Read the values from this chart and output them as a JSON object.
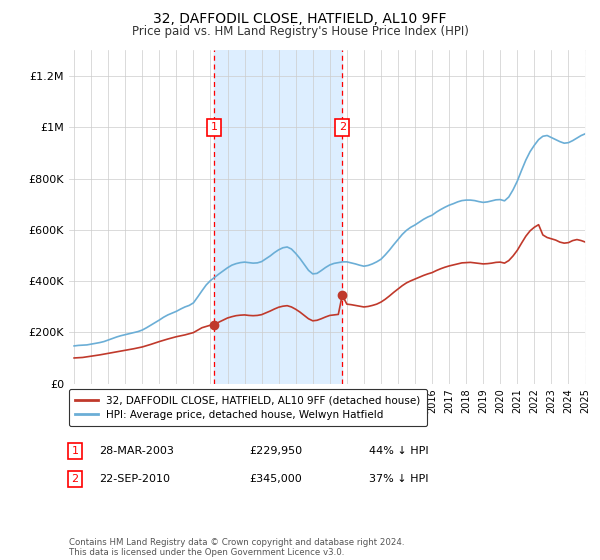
{
  "title": "32, DAFFODIL CLOSE, HATFIELD, AL10 9FF",
  "subtitle": "Price paid vs. HM Land Registry's House Price Index (HPI)",
  "sale1": {
    "date_num": 2003.22,
    "price": 229950,
    "label": "1"
  },
  "sale2": {
    "date_num": 2010.73,
    "price": 345000,
    "label": "2"
  },
  "table": [
    {
      "num": "1",
      "date": "28-MAR-2003",
      "price": "£229,950",
      "pct": "44% ↓ HPI"
    },
    {
      "num": "2",
      "date": "22-SEP-2010",
      "price": "£345,000",
      "pct": "37% ↓ HPI"
    }
  ],
  "legend1": "32, DAFFODIL CLOSE, HATFIELD, AL10 9FF (detached house)",
  "legend2": "HPI: Average price, detached house, Welwyn Hatfield",
  "footer": "Contains HM Land Registry data © Crown copyright and database right 2024.\nThis data is licensed under the Open Government Licence v3.0.",
  "hpi_color": "#6baed6",
  "price_color": "#c0392b",
  "shaded_color": "#ddeeff",
  "ylim_max": 1300000,
  "xlim_start": 1994.7,
  "xlim_end": 2025.5,
  "hpi_data": [
    [
      1995.0,
      147000
    ],
    [
      1995.25,
      149000
    ],
    [
      1995.5,
      150000
    ],
    [
      1995.75,
      151000
    ],
    [
      1996.0,
      154000
    ],
    [
      1996.25,
      157000
    ],
    [
      1996.5,
      160000
    ],
    [
      1996.75,
      164000
    ],
    [
      1997.0,
      170000
    ],
    [
      1997.25,
      176000
    ],
    [
      1997.5,
      182000
    ],
    [
      1997.75,
      187000
    ],
    [
      1998.0,
      191000
    ],
    [
      1998.25,
      195000
    ],
    [
      1998.5,
      199000
    ],
    [
      1998.75,
      203000
    ],
    [
      1999.0,
      209000
    ],
    [
      1999.25,
      218000
    ],
    [
      1999.5,
      228000
    ],
    [
      1999.75,
      238000
    ],
    [
      2000.0,
      248000
    ],
    [
      2000.25,
      259000
    ],
    [
      2000.5,
      268000
    ],
    [
      2000.75,
      275000
    ],
    [
      2001.0,
      282000
    ],
    [
      2001.25,
      291000
    ],
    [
      2001.5,
      299000
    ],
    [
      2001.75,
      305000
    ],
    [
      2002.0,
      315000
    ],
    [
      2002.25,
      338000
    ],
    [
      2002.5,
      362000
    ],
    [
      2002.75,
      385000
    ],
    [
      2003.0,
      402000
    ],
    [
      2003.25,
      415000
    ],
    [
      2003.5,
      428000
    ],
    [
      2003.75,
      440000
    ],
    [
      2004.0,
      452000
    ],
    [
      2004.25,
      462000
    ],
    [
      2004.5,
      468000
    ],
    [
      2004.75,
      472000
    ],
    [
      2005.0,
      474000
    ],
    [
      2005.25,
      472000
    ],
    [
      2005.5,
      470000
    ],
    [
      2005.75,
      471000
    ],
    [
      2006.0,
      476000
    ],
    [
      2006.25,
      487000
    ],
    [
      2006.5,
      498000
    ],
    [
      2006.75,
      511000
    ],
    [
      2007.0,
      522000
    ],
    [
      2007.25,
      530000
    ],
    [
      2007.5,
      533000
    ],
    [
      2007.75,
      525000
    ],
    [
      2008.0,
      508000
    ],
    [
      2008.25,
      488000
    ],
    [
      2008.5,
      465000
    ],
    [
      2008.75,
      442000
    ],
    [
      2009.0,
      428000
    ],
    [
      2009.25,
      430000
    ],
    [
      2009.5,
      441000
    ],
    [
      2009.75,
      453000
    ],
    [
      2010.0,
      463000
    ],
    [
      2010.25,
      469000
    ],
    [
      2010.5,
      472000
    ],
    [
      2010.75,
      475000
    ],
    [
      2011.0,
      475000
    ],
    [
      2011.25,
      471000
    ],
    [
      2011.5,
      467000
    ],
    [
      2011.75,
      462000
    ],
    [
      2012.0,
      458000
    ],
    [
      2012.25,
      461000
    ],
    [
      2012.5,
      467000
    ],
    [
      2012.75,
      475000
    ],
    [
      2013.0,
      485000
    ],
    [
      2013.25,
      502000
    ],
    [
      2013.5,
      521000
    ],
    [
      2013.75,
      542000
    ],
    [
      2014.0,
      562000
    ],
    [
      2014.25,
      582000
    ],
    [
      2014.5,
      598000
    ],
    [
      2014.75,
      610000
    ],
    [
      2015.0,
      619000
    ],
    [
      2015.25,
      630000
    ],
    [
      2015.5,
      641000
    ],
    [
      2015.75,
      650000
    ],
    [
      2016.0,
      657000
    ],
    [
      2016.25,
      669000
    ],
    [
      2016.5,
      679000
    ],
    [
      2016.75,
      688000
    ],
    [
      2017.0,
      696000
    ],
    [
      2017.25,
      702000
    ],
    [
      2017.5,
      709000
    ],
    [
      2017.75,
      714000
    ],
    [
      2018.0,
      716000
    ],
    [
      2018.25,
      716000
    ],
    [
      2018.5,
      714000
    ],
    [
      2018.75,
      710000
    ],
    [
      2019.0,
      707000
    ],
    [
      2019.25,
      709000
    ],
    [
      2019.5,
      713000
    ],
    [
      2019.75,
      717000
    ],
    [
      2020.0,
      718000
    ],
    [
      2020.25,
      713000
    ],
    [
      2020.5,
      728000
    ],
    [
      2020.75,
      756000
    ],
    [
      2021.0,
      790000
    ],
    [
      2021.25,
      832000
    ],
    [
      2021.5,
      872000
    ],
    [
      2021.75,
      905000
    ],
    [
      2022.0,
      930000
    ],
    [
      2022.25,
      952000
    ],
    [
      2022.5,
      965000
    ],
    [
      2022.75,
      968000
    ],
    [
      2023.0,
      960000
    ],
    [
      2023.25,
      952000
    ],
    [
      2023.5,
      944000
    ],
    [
      2023.75,
      938000
    ],
    [
      2024.0,
      940000
    ],
    [
      2024.25,
      948000
    ],
    [
      2024.5,
      958000
    ],
    [
      2024.75,
      968000
    ],
    [
      2025.0,
      975000
    ],
    [
      2025.25,
      980000
    ]
  ],
  "price_data": [
    [
      1995.0,
      100000
    ],
    [
      1995.5,
      102000
    ],
    [
      1996.0,
      107000
    ],
    [
      1996.5,
      112000
    ],
    [
      1997.0,
      118000
    ],
    [
      1997.5,
      124000
    ],
    [
      1998.0,
      130000
    ],
    [
      1998.5,
      136000
    ],
    [
      1999.0,
      143000
    ],
    [
      1999.5,
      153000
    ],
    [
      2000.0,
      164000
    ],
    [
      2000.5,
      174000
    ],
    [
      2001.0,
      183000
    ],
    [
      2001.5,
      190000
    ],
    [
      2002.0,
      199000
    ],
    [
      2002.5,
      218000
    ],
    [
      2003.0,
      228000
    ],
    [
      2003.22,
      229950
    ],
    [
      2003.5,
      240000
    ],
    [
      2003.75,
      248000
    ],
    [
      2004.0,
      256000
    ],
    [
      2004.25,
      261000
    ],
    [
      2004.5,
      265000
    ],
    [
      2004.75,
      267000
    ],
    [
      2005.0,
      268000
    ],
    [
      2005.25,
      266000
    ],
    [
      2005.5,
      265000
    ],
    [
      2005.75,
      266000
    ],
    [
      2006.0,
      269000
    ],
    [
      2006.25,
      276000
    ],
    [
      2006.5,
      283000
    ],
    [
      2006.75,
      291000
    ],
    [
      2007.0,
      298000
    ],
    [
      2007.25,
      302000
    ],
    [
      2007.5,
      304000
    ],
    [
      2007.75,
      299000
    ],
    [
      2008.0,
      290000
    ],
    [
      2008.25,
      279000
    ],
    [
      2008.5,
      266000
    ],
    [
      2008.75,
      253000
    ],
    [
      2009.0,
      245000
    ],
    [
      2009.25,
      247000
    ],
    [
      2009.5,
      253000
    ],
    [
      2009.75,
      260000
    ],
    [
      2010.0,
      266000
    ],
    [
      2010.5,
      270000
    ],
    [
      2010.73,
      345000
    ],
    [
      2011.0,
      310000
    ],
    [
      2011.25,
      308000
    ],
    [
      2011.5,
      305000
    ],
    [
      2011.75,
      302000
    ],
    [
      2012.0,
      299000
    ],
    [
      2012.25,
      301000
    ],
    [
      2012.5,
      305000
    ],
    [
      2012.75,
      310000
    ],
    [
      2013.0,
      318000
    ],
    [
      2013.25,
      329000
    ],
    [
      2013.5,
      342000
    ],
    [
      2013.75,
      356000
    ],
    [
      2014.0,
      369000
    ],
    [
      2014.25,
      382000
    ],
    [
      2014.5,
      393000
    ],
    [
      2014.75,
      401000
    ],
    [
      2015.0,
      408000
    ],
    [
      2015.25,
      415000
    ],
    [
      2015.5,
      422000
    ],
    [
      2015.75,
      428000
    ],
    [
      2016.0,
      433000
    ],
    [
      2016.25,
      441000
    ],
    [
      2016.5,
      448000
    ],
    [
      2016.75,
      454000
    ],
    [
      2017.0,
      459000
    ],
    [
      2017.25,
      463000
    ],
    [
      2017.5,
      467000
    ],
    [
      2017.75,
      471000
    ],
    [
      2018.0,
      472000
    ],
    [
      2018.25,
      473000
    ],
    [
      2018.5,
      471000
    ],
    [
      2018.75,
      469000
    ],
    [
      2019.0,
      467000
    ],
    [
      2019.25,
      468000
    ],
    [
      2019.5,
      470000
    ],
    [
      2019.75,
      473000
    ],
    [
      2020.0,
      474000
    ],
    [
      2020.25,
      470000
    ],
    [
      2020.5,
      480000
    ],
    [
      2020.75,
      498000
    ],
    [
      2021.0,
      520000
    ],
    [
      2021.25,
      548000
    ],
    [
      2021.5,
      575000
    ],
    [
      2021.75,
      596000
    ],
    [
      2022.0,
      610000
    ],
    [
      2022.25,
      620000
    ],
    [
      2022.5,
      580000
    ],
    [
      2022.75,
      570000
    ],
    [
      2023.0,
      565000
    ],
    [
      2023.25,
      560000
    ],
    [
      2023.5,
      552000
    ],
    [
      2023.75,
      548000
    ],
    [
      2024.0,
      550000
    ],
    [
      2024.25,
      558000
    ],
    [
      2024.5,
      562000
    ],
    [
      2024.75,
      558000
    ],
    [
      2025.0,
      552000
    ]
  ]
}
